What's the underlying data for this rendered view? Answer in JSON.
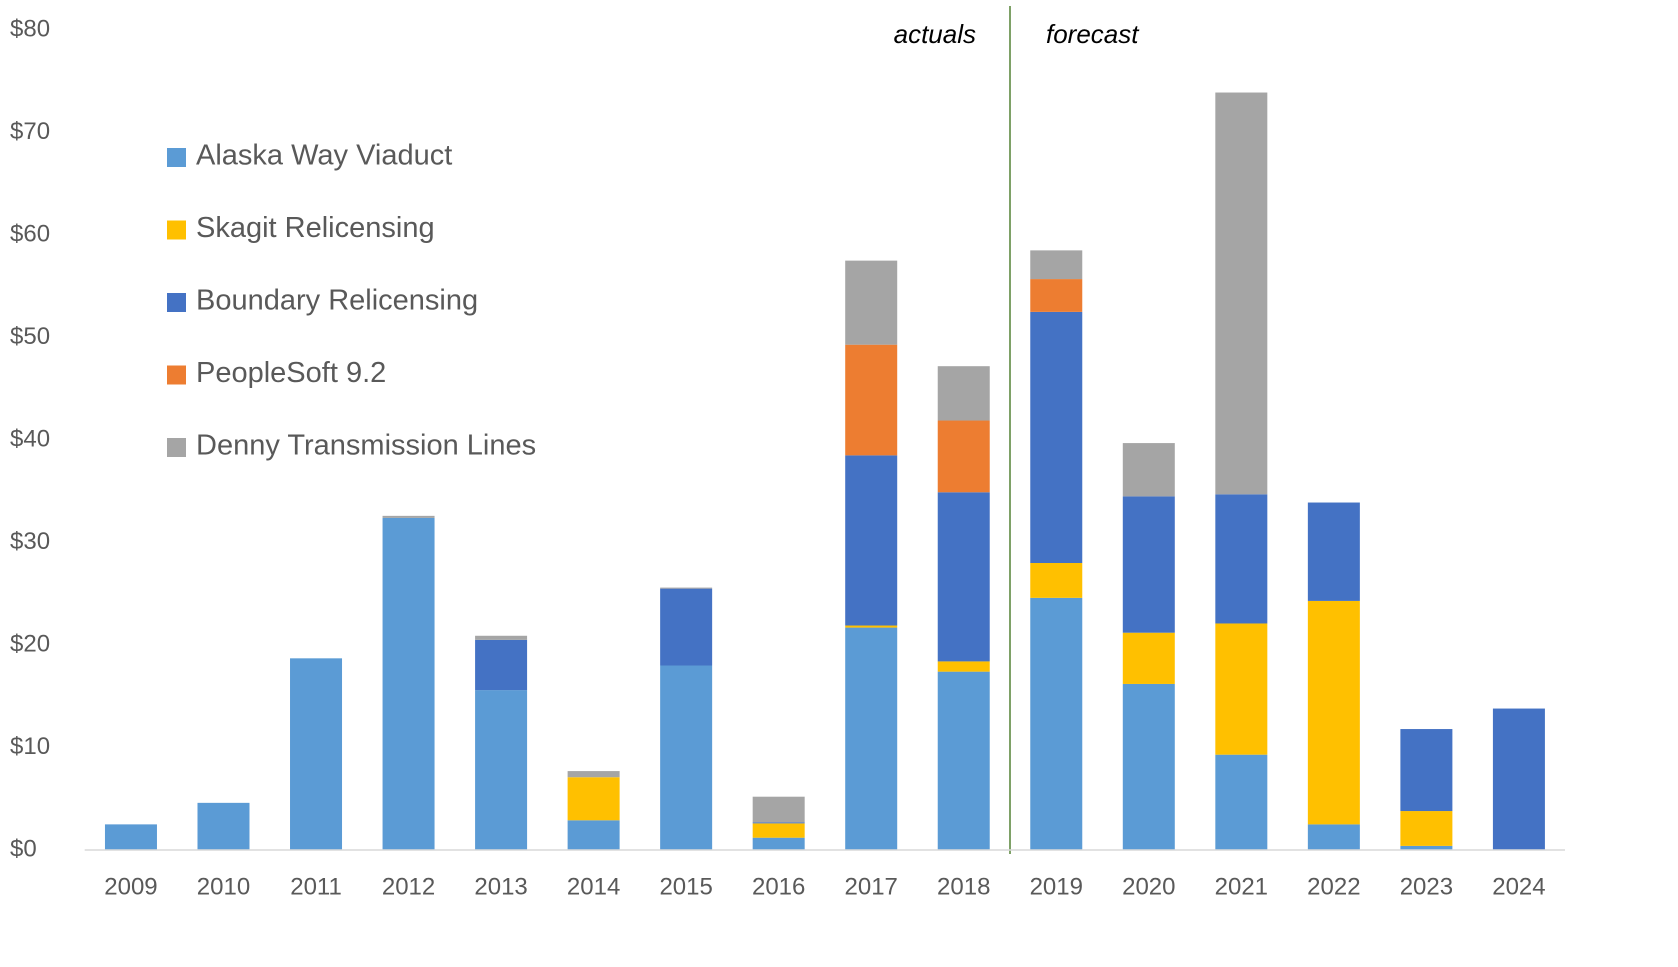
{
  "chart_data": {
    "type": "bar",
    "stacked": true,
    "annotations": [
      "actuals",
      "forecast"
    ],
    "categories": [
      "2009",
      "2010",
      "2011",
      "2012",
      "2013",
      "2014",
      "2015",
      "2016",
      "2017",
      "2018",
      "2019",
      "2020",
      "2021",
      "2022",
      "2023",
      "2024"
    ],
    "series": [
      {
        "name": "Alaska Way Viaduct",
        "color": "#5b9bd5",
        "values": [
          2.5,
          4.6,
          18.7,
          32.4,
          15.6,
          2.9,
          18.0,
          1.2,
          21.7,
          17.4,
          24.6,
          16.2,
          9.3,
          2.5,
          0.4,
          0
        ]
      },
      {
        "name": "Skagit Relicensing",
        "color": "#ffc000",
        "values": [
          0,
          0,
          0,
          0,
          0,
          4.2,
          0,
          1.4,
          0.2,
          1.0,
          3.4,
          5.0,
          12.8,
          21.8,
          3.4,
          0
        ]
      },
      {
        "name": "Boundary Relicensing",
        "color": "#4472c4",
        "values": [
          0,
          0,
          0,
          0,
          4.9,
          0,
          7.5,
          0.1,
          16.6,
          16.5,
          24.5,
          13.3,
          12.6,
          9.6,
          8.0,
          13.8
        ]
      },
      {
        "name": "PeopleSoft 9.2",
        "color": "#ed7d31",
        "values": [
          0,
          0,
          0,
          0,
          0,
          0,
          0,
          0,
          10.8,
          7.0,
          3.2,
          0,
          0,
          0,
          0,
          0
        ]
      },
      {
        "name": "Denny Transmission Lines",
        "color": "#a5a5a5",
        "values": [
          0,
          0,
          0,
          0.2,
          0.4,
          0.6,
          0.1,
          2.5,
          8.2,
          5.3,
          2.8,
          5.2,
          39.2,
          0,
          0,
          0
        ]
      }
    ],
    "ylim": [
      0,
      80
    ],
    "yticks": [
      {
        "value": 0,
        "label": "$0"
      },
      {
        "value": 10,
        "label": "$10"
      },
      {
        "value": 20,
        "label": "$20"
      },
      {
        "value": 30,
        "label": "$30"
      },
      {
        "value": 40,
        "label": "$40"
      },
      {
        "value": 50,
        "label": "$50"
      },
      {
        "value": 60,
        "label": "$60"
      },
      {
        "value": 70,
        "label": "$70"
      },
      {
        "value": 80,
        "label": "$80"
      }
    ],
    "grid": false
  }
}
